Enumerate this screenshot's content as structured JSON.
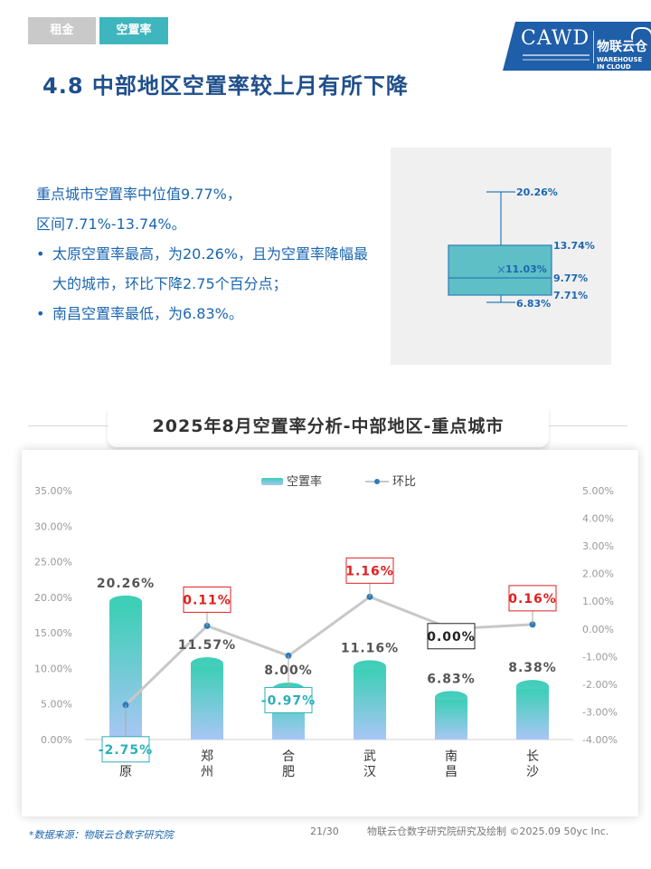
{
  "header": {
    "tabs": [
      {
        "label": "租金"
      },
      {
        "label": "空置率"
      }
    ],
    "logo": {
      "text": "CAWD",
      "cn": "物联云仓",
      "en": "WAREHOUSE IN CLOUD"
    },
    "title": "4.8 中部地区空置率较上月有所下降"
  },
  "summary": {
    "line1": "重点城市空置率中位值9.77%，",
    "line2": "区间7.71%-13.74%。",
    "bullet1": "太原空置率最高，为20.26%，且为空置率降幅最大的城市，环比下降2.75个百分点；",
    "bullet2": "南昌空置率最低，为6.83%。"
  },
  "boxplot": {
    "max": "20.26%",
    "q3": "13.74%",
    "mean": "11.03%",
    "median": "9.77%",
    "q1": "7.71%",
    "min": "6.83%",
    "mean_marker": "×",
    "values": {
      "max": 20.26,
      "q3": 13.74,
      "mean": 11.03,
      "median": 9.77,
      "q1": 7.71,
      "min": 6.83
    }
  },
  "section_title": "2025年8月空置率分析-中部地区-重点城市",
  "chart_data": {
    "type": "bar",
    "title": "2025年8月空置率分析-中部地区-重点城市",
    "categories": [
      "太原",
      "郑州",
      "合肥",
      "武汉",
      "南昌",
      "长沙"
    ],
    "series": [
      {
        "name": "空置率",
        "type": "bar",
        "axis": "left",
        "values": [
          20.26,
          11.57,
          8.0,
          11.16,
          6.83,
          8.38
        ],
        "labels": [
          "20.26%",
          "11.57%",
          "8.00%",
          "11.16%",
          "6.83%",
          "8.38%"
        ]
      },
      {
        "name": "环比",
        "type": "line",
        "axis": "right",
        "values": [
          -2.75,
          0.11,
          -0.97,
          1.16,
          0.0,
          0.16
        ],
        "labels": [
          "-2.75%",
          "0.11%",
          "-0.97%",
          "1.16%",
          "0.00%",
          "0.16%"
        ]
      }
    ],
    "y_left": {
      "min": 0,
      "max": 35,
      "step": 5,
      "ticks": [
        "0.00%",
        "5.00%",
        "10.00%",
        "15.00%",
        "20.00%",
        "25.00%",
        "30.00%",
        "35.00%"
      ]
    },
    "y_right": {
      "min": -4,
      "max": 5,
      "step": 1,
      "ticks": [
        "-4.00%",
        "-3.00%",
        "-2.00%",
        "-1.00%",
        "0.00%",
        "1.00%",
        "2.00%",
        "3.00%",
        "4.00%",
        "5.00%"
      ]
    },
    "legend_position": "top-center",
    "grid": false,
    "colors": {
      "bar_top": "#3ccfb6",
      "bar_bottom": "#a9c6f5",
      "line": "#c8c8c8",
      "marker": "#2e7bb8",
      "label_positive": "#e02020",
      "label_negative": "#2ab0b8",
      "label_zero": "#222222"
    }
  },
  "footer": {
    "source": "*数据来源：物联云仓数字研究院",
    "page": "21/30",
    "copyright": "物联云仓数字研究院研究及绘制  ©2025.09 50yc Inc."
  }
}
